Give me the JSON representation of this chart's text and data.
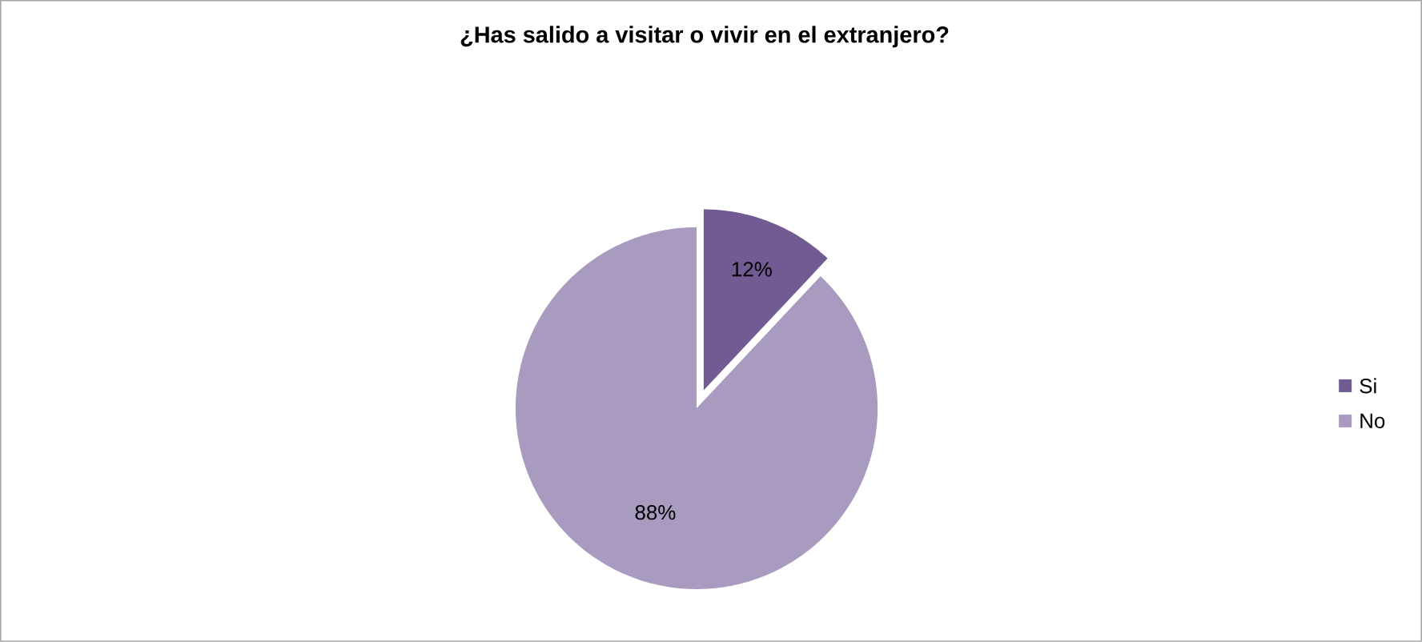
{
  "chart_data": {
    "type": "pie",
    "title": "¿Has salido a visitar o vivir en el extranjero?",
    "categories": [
      "Si",
      "No"
    ],
    "values": [
      12,
      88
    ],
    "colors": [
      "#725a93",
      "#a99bbf"
    ],
    "value_labels": [
      "12%",
      "88%"
    ],
    "legend": "right"
  }
}
